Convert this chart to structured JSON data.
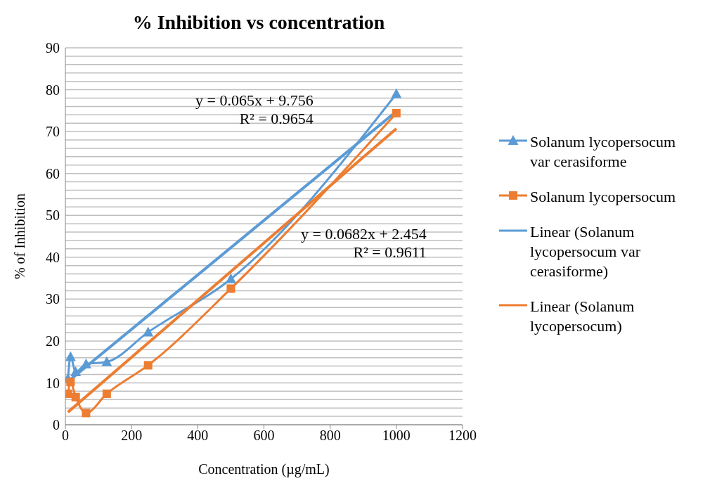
{
  "chart_data": {
    "type": "line",
    "title": "% Inhibition vs concentration",
    "xlabel": "Concentration (µg/mL)",
    "ylabel": "% of Inhibition",
    "xlim": [
      0,
      1200
    ],
    "xticks": [
      0,
      200,
      400,
      600,
      800,
      1000,
      1200
    ],
    "ylim": [
      0,
      90
    ],
    "yticks": [
      0,
      {
        "value": 2,
        "label": null
      },
      {
        "value": 4,
        "label": null
      },
      {
        "value": 6,
        "label": null
      },
      {
        "value": 8,
        "label": null
      },
      10,
      {
        "value": 12,
        "label": null
      },
      {
        "value": 14,
        "label": null
      },
      {
        "value": 16,
        "label": null
      },
      {
        "value": 18,
        "label": null
      },
      20,
      {
        "value": 22,
        "label": null
      },
      {
        "value": 24,
        "label": null
      },
      {
        "value": 26,
        "label": null
      },
      {
        "value": 28,
        "label": null
      },
      30,
      {
        "value": 32,
        "label": null
      },
      {
        "value": 34,
        "label": null
      },
      {
        "value": 36,
        "label": null
      },
      {
        "value": 38,
        "label": null
      },
      40,
      {
        "value": 42,
        "label": null
      },
      {
        "value": 44,
        "label": null
      },
      {
        "value": 46,
        "label": null
      },
      {
        "value": 48,
        "label": null
      },
      50,
      {
        "value": 52,
        "label": null
      },
      {
        "value": 54,
        "label": null
      },
      {
        "value": 56,
        "label": null
      },
      {
        "value": 58,
        "label": null
      },
      60,
      {
        "value": 62,
        "label": null
      },
      {
        "value": 64,
        "label": null
      },
      {
        "value": 66,
        "label": null
      },
      {
        "value": 68,
        "label": null
      },
      70,
      {
        "value": 72,
        "label": null
      },
      {
        "value": 74,
        "label": null
      },
      {
        "value": 76,
        "label": null
      },
      {
        "value": 78,
        "label": null
      },
      80,
      {
        "value": 82,
        "label": null
      },
      {
        "value": 84,
        "label": null
      },
      {
        "value": 86,
        "label": null
      },
      {
        "value": 88,
        "label": null
      },
      90
    ],
    "grid": "y",
    "legend": "right",
    "line_style": "solid",
    "annotations": [
      "y = 0.065x + 9.756\nR² = 0.9654",
      "y = 0.0682x + 2.454\nR² = 0.9611"
    ],
    "series": [
      {
        "name": "Solanum lycopersocum var cerasiforme",
        "marker": "triangle",
        "color": "#5b9bd5",
        "x": [
          7.8,
          15.6,
          31.25,
          62.5,
          125,
          250,
          500,
          1000
        ],
        "values": [
          11,
          16.2,
          12.6,
          14.5,
          15,
          22.1,
          34.8,
          79
        ]
      },
      {
        "name": "Solanum lycopersocum",
        "marker": "square",
        "color": "#ed7d31",
        "x": [
          7.8,
          15.6,
          31.25,
          62.5,
          125,
          250,
          500,
          1000
        ],
        "values": [
          7.4,
          10.2,
          6.6,
          2.8,
          7.4,
          14.2,
          32.5,
          74.4
        ]
      },
      {
        "name": "Linear (Solanum lycopersocum var cerasiforme)",
        "marker": "none",
        "color": "#5b9bd5",
        "x": [
          7.8,
          1000
        ],
        "values": [
          10.3,
          74.8
        ]
      },
      {
        "name": "Linear (Solanum lycopersocum)",
        "marker": "none",
        "color": "#ed7d31",
        "x": [
          7.8,
          1000
        ],
        "values": [
          3.0,
          70.7
        ]
      }
    ]
  }
}
